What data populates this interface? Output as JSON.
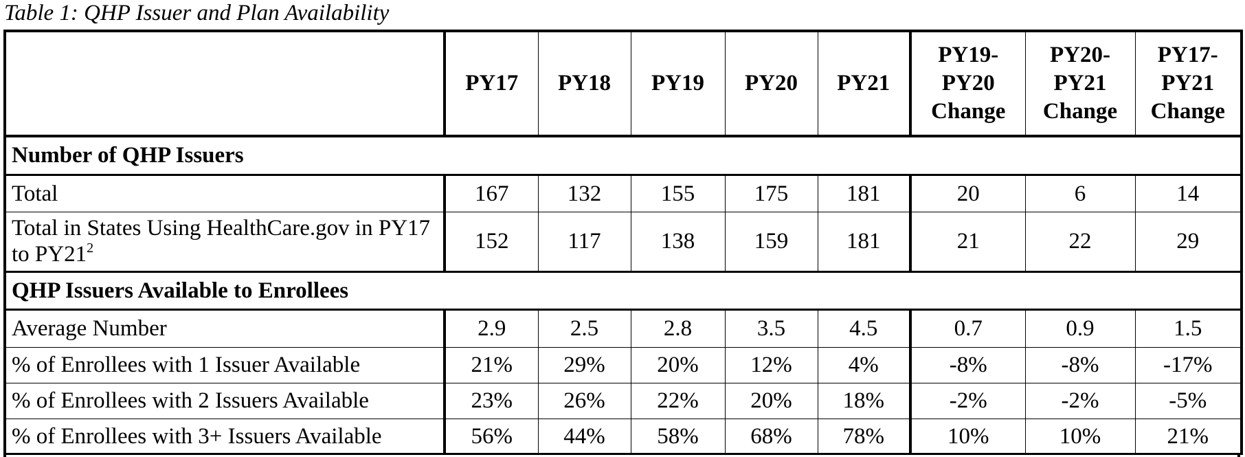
{
  "caption": "Table 1: QHP Issuer and Plan Availability",
  "table": {
    "columns": [
      [
        "PY17"
      ],
      [
        "PY18"
      ],
      [
        "PY19"
      ],
      [
        "PY20"
      ],
      [
        "PY21"
      ],
      [
        "PY19-",
        "PY20",
        "Change"
      ],
      [
        "PY20-",
        "PY21",
        "Change"
      ],
      [
        "PY17-",
        "PY21",
        "Change"
      ]
    ],
    "sections": [
      {
        "title": "Number of QHP Issuers",
        "rows": [
          {
            "label": "Total",
            "values": [
              "167",
              "132",
              "155",
              "175",
              "181",
              "20",
              "6",
              "14"
            ]
          },
          {
            "label": "Total in States Using HealthCare.gov in PY17 to PY21",
            "footnote": "2",
            "values": [
              "152",
              "117",
              "138",
              "159",
              "181",
              "21",
              "22",
              "29"
            ]
          }
        ]
      },
      {
        "title": "QHP Issuers Available to Enrollees",
        "rows": [
          {
            "label": "Average Number",
            "values": [
              "2.9",
              "2.5",
              "2.8",
              "3.5",
              "4.5",
              "0.7",
              "0.9",
              "1.5"
            ]
          },
          {
            "label": "% of Enrollees with 1 Issuer Available",
            "values": [
              "21%",
              "29%",
              "20%",
              "12%",
              "4%",
              "-8%",
              "-8%",
              "-17%"
            ]
          },
          {
            "label": "% of Enrollees with 2 Issuers Available",
            "values": [
              "23%",
              "26%",
              "22%",
              "20%",
              "18%",
              "-2%",
              "-2%",
              "-5%"
            ]
          },
          {
            "label": "% of Enrollees with 3+ Issuers Available",
            "values": [
              "56%",
              "44%",
              "58%",
              "68%",
              "78%",
              "10%",
              "10%",
              "21%"
            ]
          }
        ]
      }
    ]
  }
}
